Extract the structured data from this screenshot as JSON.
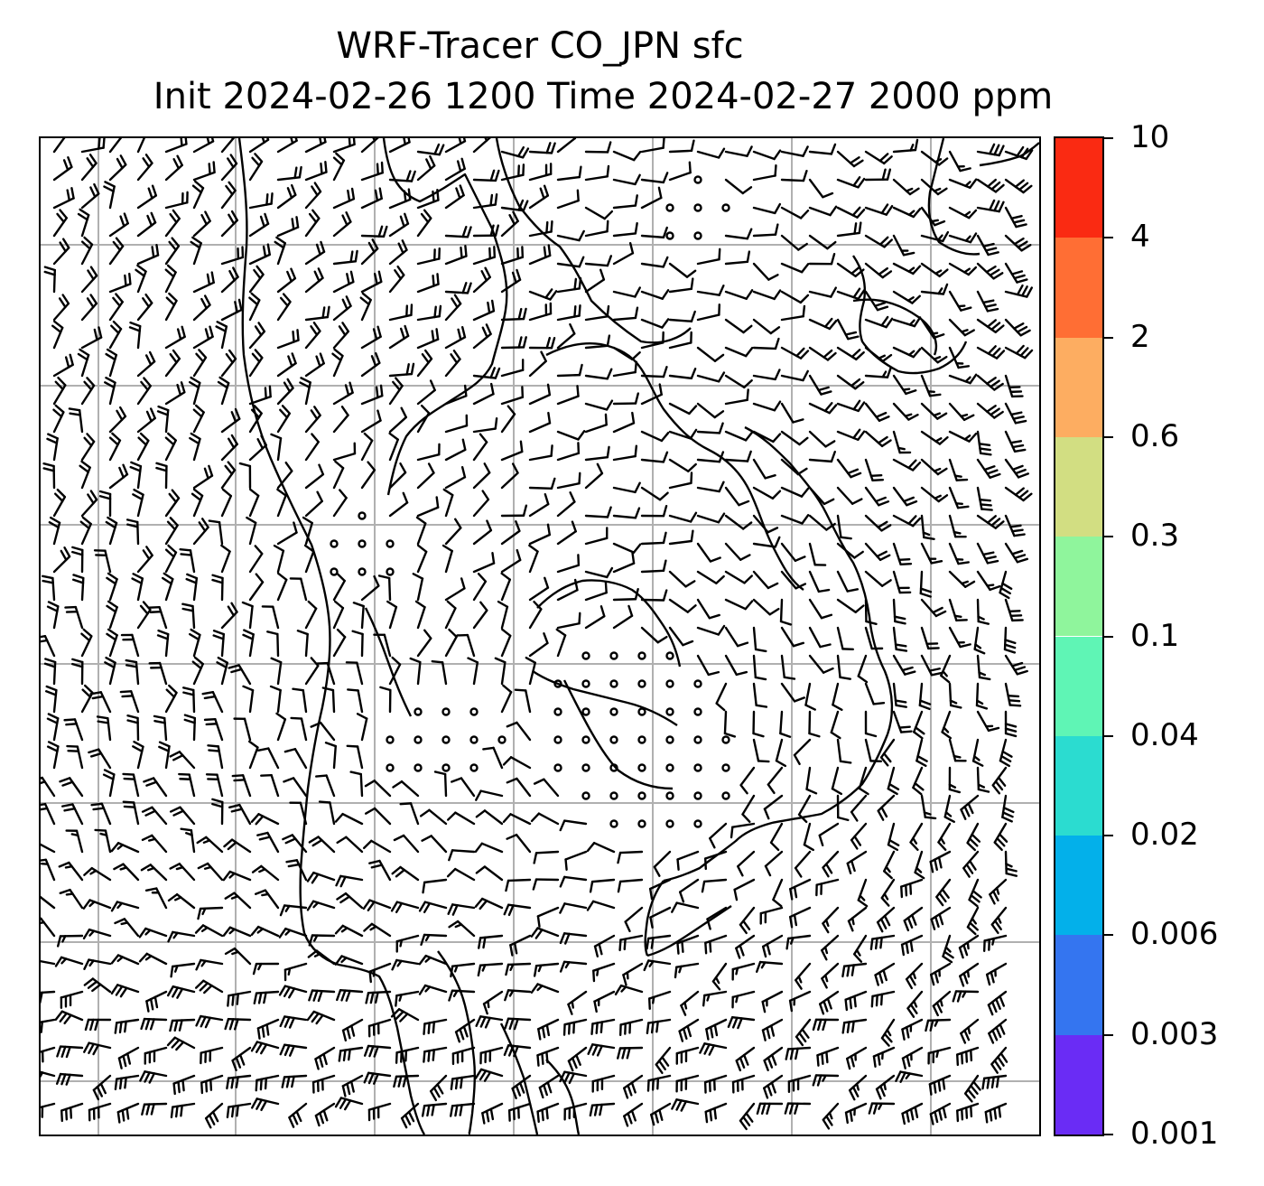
{
  "title": {
    "line1": "WRF-Tracer CO_JPN sfc",
    "line2": "Init 2024-02-26 1200 Time 2024-02-27 2000 ppm"
  },
  "map": {
    "gridlines": "on",
    "coastline_color": "#000000",
    "gridline_color": "#b0b0b0",
    "field_fill": "none visible (all values below 0.001 ppm)",
    "wind_barbs": "black"
  },
  "colorbar": {
    "levels": [
      "0.001",
      "0.003",
      "0.006",
      "0.02",
      "0.04",
      "0.1",
      "0.3",
      "0.6",
      "2",
      "4",
      "10"
    ],
    "colors": [
      "#6a2cf5",
      "#3475f0",
      "#03b0ea",
      "#2bdcd0",
      "#5ff5b5",
      "#8ff59c",
      "#d2de82",
      "#fdad61",
      "#ff6e34",
      "#fa2a12"
    ]
  }
}
